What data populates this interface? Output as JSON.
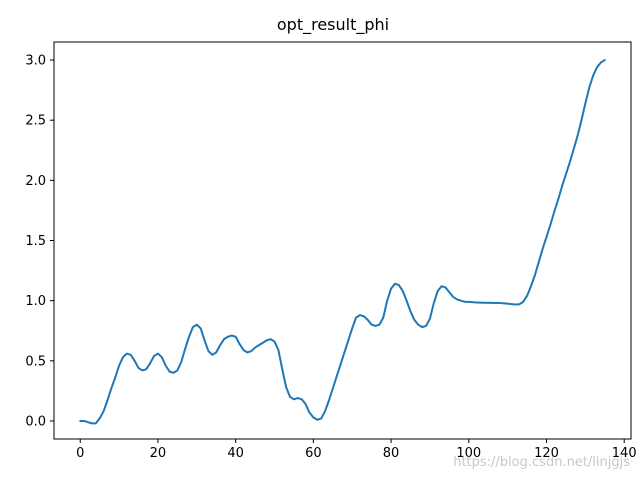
{
  "chart_data": {
    "type": "line",
    "title": "opt_result_phi",
    "xlabel": "",
    "ylabel": "",
    "xlim": [
      -6.75,
      141.75
    ],
    "ylim": [
      -0.15,
      3.15
    ],
    "xticks": [
      0,
      20,
      40,
      60,
      80,
      100,
      120,
      140
    ],
    "yticks": [
      0.0,
      0.5,
      1.0,
      1.5,
      2.0,
      2.5,
      3.0
    ],
    "xtick_labels": [
      "0",
      "20",
      "40",
      "60",
      "80",
      "100",
      "120",
      "140"
    ],
    "ytick_labels": [
      "0.0",
      "0.5",
      "1.0",
      "1.5",
      "2.0",
      "2.5",
      "3.0"
    ],
    "grid": false,
    "legend": "none",
    "series": [
      {
        "color": "#1f77b4",
        "x": [
          0,
          1,
          2,
          3,
          4,
          5,
          6,
          7,
          8,
          9,
          10,
          11,
          12,
          13,
          14,
          15,
          16,
          17,
          18,
          19,
          20,
          21,
          22,
          23,
          24,
          25,
          26,
          27,
          28,
          29,
          30,
          31,
          32,
          33,
          34,
          35,
          36,
          37,
          38,
          39,
          40,
          41,
          42,
          43,
          44,
          45,
          46,
          47,
          48,
          49,
          50,
          51,
          52,
          53,
          54,
          55,
          56,
          57,
          58,
          59,
          60,
          61,
          62,
          63,
          64,
          65,
          66,
          67,
          68,
          69,
          70,
          71,
          72,
          73,
          74,
          75,
          76,
          77,
          78,
          79,
          80,
          81,
          82,
          83,
          84,
          85,
          86,
          87,
          88,
          89,
          90,
          91,
          92,
          93,
          94,
          95,
          96,
          97,
          98,
          99,
          100,
          102,
          104,
          106,
          108,
          110,
          112,
          113,
          114,
          115,
          116,
          117,
          118,
          119,
          120,
          121,
          122,
          123,
          124,
          125,
          126,
          127,
          128,
          129,
          130,
          131,
          132,
          133,
          134,
          135
        ],
        "y": [
          0.0,
          0.0,
          -0.01,
          -0.02,
          -0.02,
          0.02,
          0.08,
          0.17,
          0.27,
          0.36,
          0.46,
          0.53,
          0.56,
          0.55,
          0.5,
          0.44,
          0.42,
          0.43,
          0.48,
          0.54,
          0.56,
          0.53,
          0.46,
          0.41,
          0.4,
          0.42,
          0.49,
          0.6,
          0.7,
          0.78,
          0.8,
          0.77,
          0.67,
          0.58,
          0.55,
          0.57,
          0.63,
          0.68,
          0.7,
          0.71,
          0.7,
          0.64,
          0.59,
          0.57,
          0.58,
          0.61,
          0.63,
          0.65,
          0.67,
          0.68,
          0.66,
          0.59,
          0.43,
          0.28,
          0.2,
          0.18,
          0.19,
          0.18,
          0.14,
          0.07,
          0.03,
          0.01,
          0.02,
          0.08,
          0.17,
          0.27,
          0.37,
          0.47,
          0.57,
          0.67,
          0.77,
          0.86,
          0.88,
          0.87,
          0.84,
          0.8,
          0.79,
          0.8,
          0.86,
          1.0,
          1.1,
          1.14,
          1.13,
          1.08,
          1.0,
          0.91,
          0.84,
          0.8,
          0.78,
          0.79,
          0.85,
          0.98,
          1.08,
          1.12,
          1.11,
          1.07,
          1.03,
          1.01,
          1.0,
          0.99,
          0.99,
          0.985,
          0.983,
          0.982,
          0.98,
          0.975,
          0.968,
          0.97,
          0.99,
          1.04,
          1.12,
          1.21,
          1.32,
          1.43,
          1.53,
          1.63,
          1.74,
          1.84,
          1.95,
          2.05,
          2.15,
          2.26,
          2.37,
          2.5,
          2.64,
          2.77,
          2.87,
          2.94,
          2.98,
          3.0
        ]
      }
    ]
  },
  "watermark": "https://blog.csdn.net/linjgjs"
}
